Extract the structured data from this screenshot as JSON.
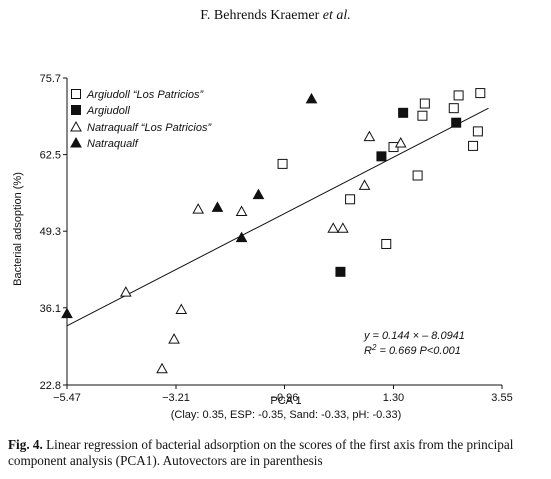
{
  "header": {
    "author": "F. Behrends Kraemer",
    "etal": " et al."
  },
  "caption": {
    "label": "Fig. 4.",
    "text": "  Linear regression of bacterial adsorption on the scores of the first axis from the principal component analysis (PCA1). Autovectors are in parenthesis"
  },
  "chart_data": {
    "type": "scatter",
    "title": "",
    "xlabel": "PCA 1",
    "xlabel_sub": "(Clay: 0.35, ESP: -0.35, Sand: -0.33, pH: -0.33)",
    "ylabel": "Bacterial adsoption (%)",
    "xlim": [
      -5.47,
      3.55
    ],
    "ylim": [
      22.8,
      75.7
    ],
    "xticks": [
      -5.47,
      -3.21,
      -0.96,
      1.3,
      3.55
    ],
    "xtick_labels": [
      "-5.47",
      "-3.21",
      "-0.96",
      "1.30",
      "3.55"
    ],
    "yticks": [
      22.8,
      36.1,
      49.3,
      62.5,
      75.7
    ],
    "ytick_labels": [
      "22.8",
      "36.1",
      "49.3",
      "62.5",
      "75.7"
    ],
    "legend_position": "top-left",
    "regression": {
      "slope": 0.144,
      "intercept": -8.0941,
      "x_range": [
        -5.47,
        3.27
      ],
      "y_range": [
        33.0,
        70.5
      ],
      "equation": "y = 0.144 ×  – 8.0941",
      "r2_label": "R",
      "r2_sup": "2",
      "r2_rest": " = 0.669  P<0.001"
    },
    "series": [
      {
        "name": "Argiudoll “Los Patricios”",
        "marker": "square-open",
        "points": [
          [
            -1.0,
            60.9
          ],
          [
            0.4,
            54.8
          ],
          [
            1.15,
            47.1
          ],
          [
            1.8,
            58.9
          ],
          [
            1.9,
            69.2
          ],
          [
            1.95,
            71.3
          ],
          [
            2.55,
            70.5
          ],
          [
            2.65,
            72.7
          ],
          [
            2.95,
            64.0
          ],
          [
            3.05,
            66.5
          ],
          [
            3.1,
            73.1
          ],
          [
            1.3,
            63.8
          ]
        ]
      },
      {
        "name": "Argiudoll",
        "marker": "square-filled",
        "points": [
          [
            0.2,
            42.3
          ],
          [
            1.05,
            62.2
          ],
          [
            1.5,
            69.7
          ],
          [
            2.6,
            68.0
          ]
        ]
      },
      {
        "name": "Natraqualf “Los Patricios”",
        "marker": "triangle-open",
        "points": [
          [
            -4.25,
            38.8
          ],
          [
            -3.5,
            25.6
          ],
          [
            -3.25,
            30.7
          ],
          [
            -3.1,
            35.8
          ],
          [
            -2.75,
            53.1
          ],
          [
            -1.85,
            52.7
          ],
          [
            0.05,
            49.8
          ],
          [
            0.25,
            49.8
          ],
          [
            0.7,
            57.2
          ],
          [
            0.8,
            65.6
          ],
          [
            1.45,
            64.5
          ]
        ]
      },
      {
        "name": "Natraqualf",
        "marker": "triangle-filled",
        "points": [
          [
            -5.47,
            35.1
          ],
          [
            -2.35,
            53.4
          ],
          [
            -1.85,
            48.2
          ],
          [
            -1.5,
            55.6
          ],
          [
            -0.4,
            72.1
          ]
        ]
      }
    ]
  }
}
